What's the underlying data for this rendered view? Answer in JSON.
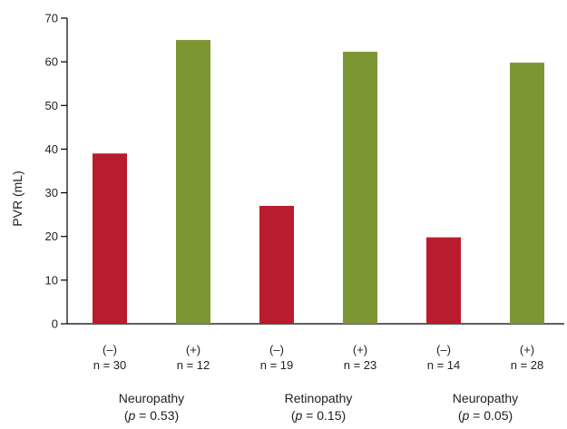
{
  "chart_data": {
    "type": "bar",
    "ylabel": "PVR (mL)",
    "ylim": [
      0,
      70
    ],
    "yticks": [
      0,
      10,
      20,
      30,
      40,
      50,
      60,
      70
    ],
    "grid": false,
    "legend": "none",
    "bars": [
      {
        "sign": "(–)",
        "n": "n = 30",
        "value": 39,
        "color": "#b91c2c"
      },
      {
        "sign": "(+)",
        "n": "n = 12",
        "value": 65,
        "color": "#7d9634"
      },
      {
        "sign": "(–)",
        "n": "n = 19",
        "value": 27,
        "color": "#b91c2c"
      },
      {
        "sign": "(+)",
        "n": "n = 23",
        "value": 62.3,
        "color": "#7d9634"
      },
      {
        "sign": "(–)",
        "n": "n = 14",
        "value": 19.8,
        "color": "#b91c2c"
      },
      {
        "sign": "(+)",
        "n": "n = 28",
        "value": 59.8,
        "color": "#7d9634"
      }
    ],
    "groups": [
      {
        "label": "Neuropathy",
        "p_prefix": "(",
        "p_symbol": "p",
        "p_suffix": " = 0.53)"
      },
      {
        "label": "Retinopathy",
        "p_prefix": "(",
        "p_symbol": "p",
        "p_suffix": " = 0.15)"
      },
      {
        "label": "Neuropathy",
        "p_prefix": "(",
        "p_symbol": "p",
        "p_suffix": " = 0.05)"
      }
    ]
  }
}
